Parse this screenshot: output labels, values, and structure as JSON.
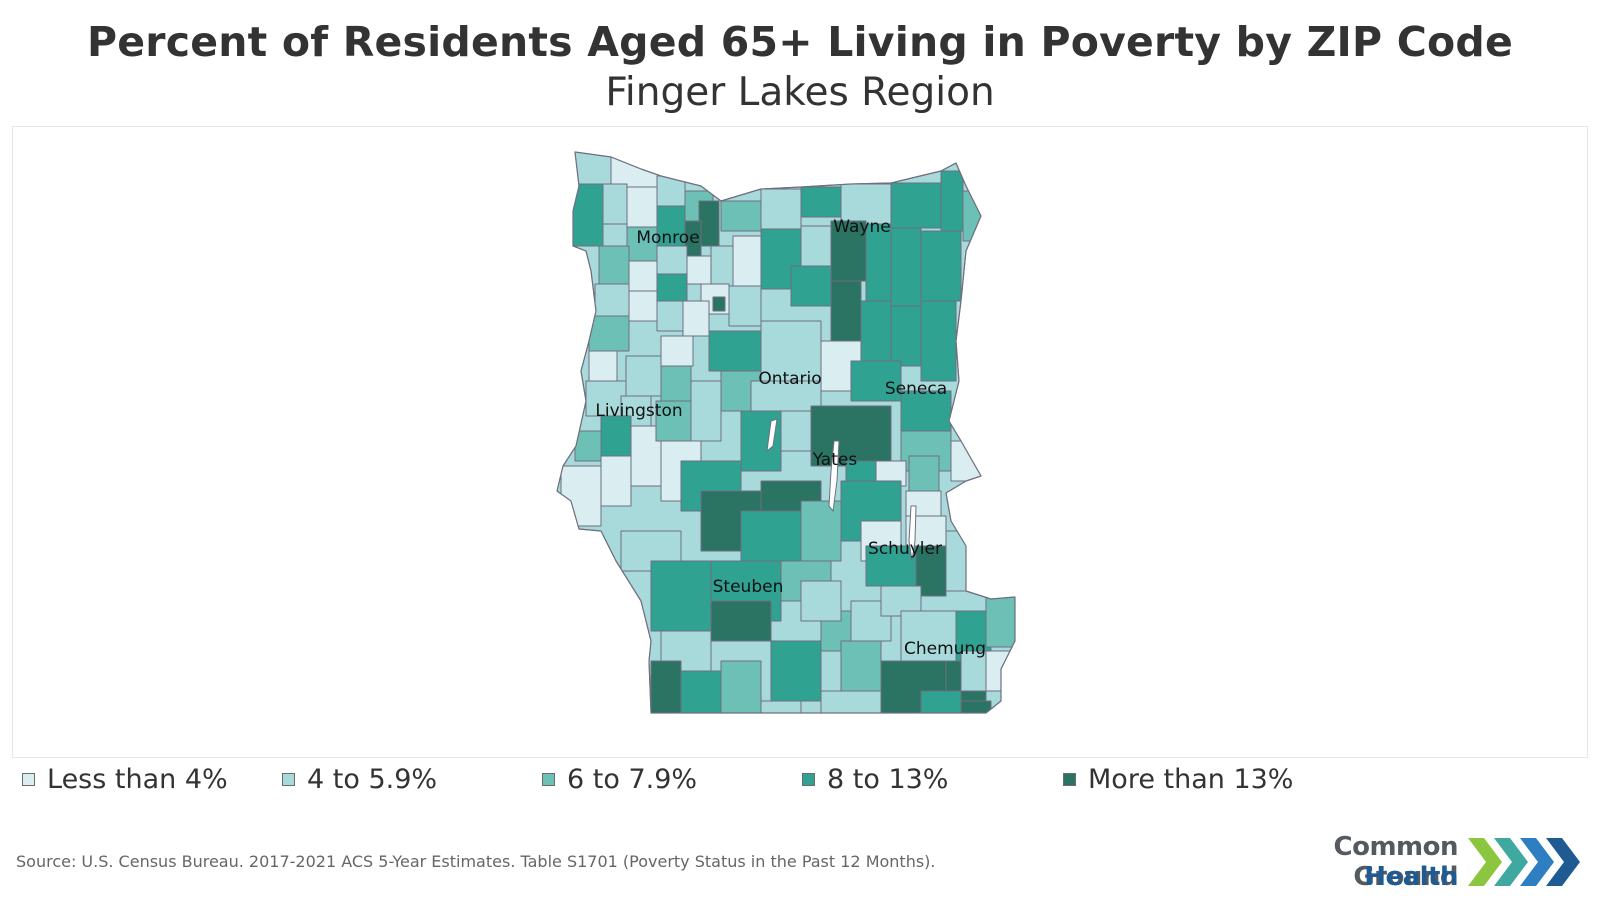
{
  "title": "Percent of Residents Aged 65+ Living in Poverty by ZIP Code",
  "subtitle": "Finger Lakes Region",
  "colors": {
    "less_than_4": "#daeef2",
    "4_to_5_9": "#a9dadb",
    "6_to_7_9": "#6cc0b6",
    "8_to_13": "#2fa292",
    "more_than_13": "#2b7363",
    "boundary": "#6f6f7f",
    "lake": "#ffffff"
  },
  "legend": [
    {
      "label": "Less than 4%",
      "color": "#daeef2"
    },
    {
      "label": "4 to 5.9%",
      "color": "#a9dadb"
    },
    {
      "label": "6 to 7.9%",
      "color": "#6cc0b6"
    },
    {
      "label": "8 to 13%",
      "color": "#2fa292"
    },
    {
      "label": "More than 13%",
      "color": "#2b7363"
    }
  ],
  "counties": [
    "Monroe",
    "Wayne",
    "Ontario",
    "Seneca",
    "Livingston",
    "Yates",
    "Schuyler",
    "Steuben",
    "Chemung"
  ],
  "source": "Source: U.S. Census Bureau. 2017-2021 ACS 5-Year Estimates. Table S1701 (Poverty Status in the Past 12 Months).",
  "logo": {
    "line1": "Common Ground",
    "line2": "Health",
    "chevron_colors": [
      "#8cc63f",
      "#3fa9a0",
      "#2e7fc1",
      "#1f5b93"
    ]
  }
}
